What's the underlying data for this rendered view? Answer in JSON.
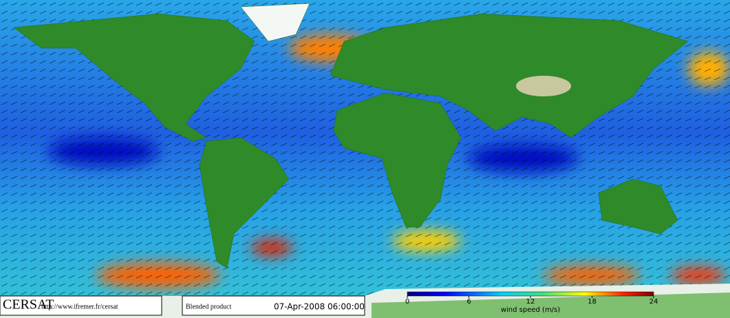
{
  "credit": {
    "brand": "CERSAT",
    "url": "http://www.ifremer.fr/cersat"
  },
  "product": {
    "name": "Blended product",
    "date": "07-Apr-2008 06:00:00"
  },
  "colorbar": {
    "label": "wind speed (m/s)",
    "range": [
      0,
      24
    ],
    "ticks": [
      0,
      6,
      12,
      18,
      24
    ]
  }
}
